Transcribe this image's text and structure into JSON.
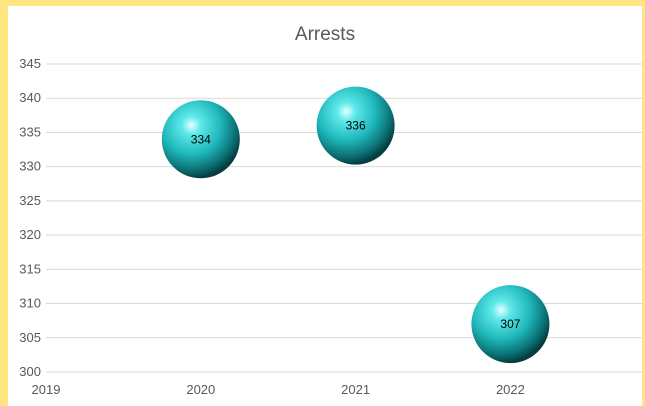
{
  "chart_data": {
    "type": "scatter",
    "title": "Arrests",
    "xlabel": "",
    "ylabel": "",
    "x": [
      2020,
      2021,
      2022
    ],
    "y": [
      334,
      336,
      307
    ],
    "data_labels": [
      "334",
      "336",
      "307"
    ],
    "xlim": [
      2019,
      2022.85
    ],
    "ylim": [
      300,
      345
    ],
    "x_ticks": [
      "2019",
      "2020",
      "2021",
      "2022"
    ],
    "y_ticks": [
      "300",
      "305",
      "310",
      "315",
      "320",
      "325",
      "330",
      "335",
      "340",
      "345"
    ],
    "grid": true,
    "legend": "none",
    "marker_color": "#29c9cc",
    "background": "#ffe680"
  }
}
